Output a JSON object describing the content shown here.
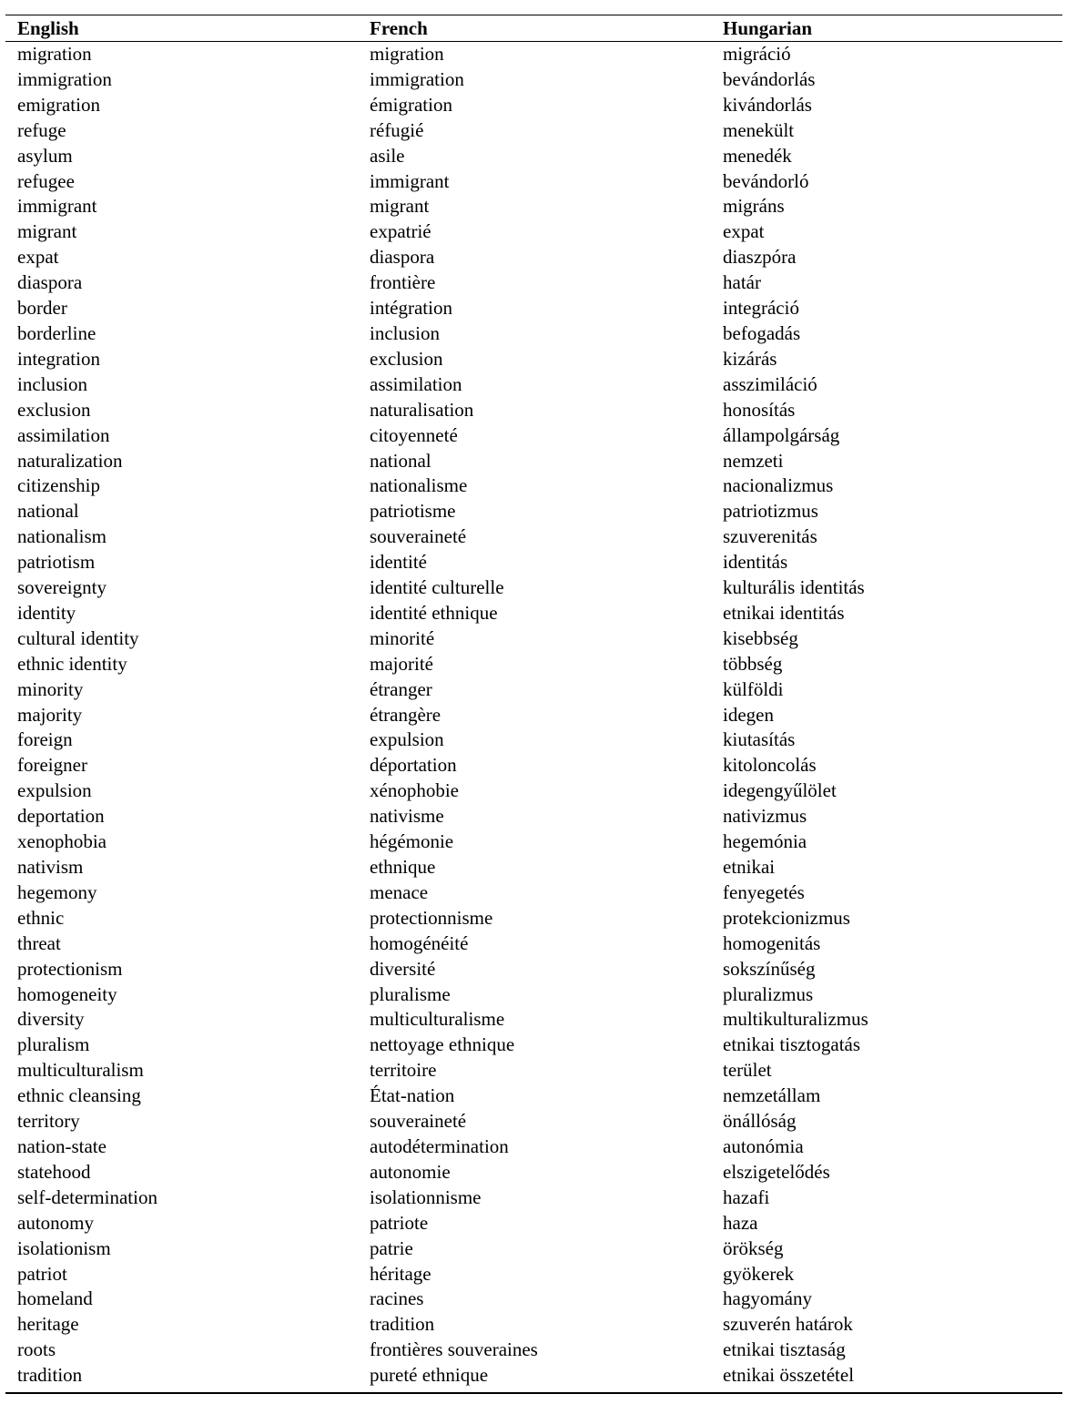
{
  "table": {
    "headers": [
      "English",
      "French",
      "Hungarian"
    ],
    "rows": [
      [
        "migration",
        "migration",
        "migráció"
      ],
      [
        "immigration",
        "immigration",
        "bevándorlás"
      ],
      [
        "emigration",
        "émigration",
        "kivándorlás"
      ],
      [
        "refuge",
        "réfugié",
        "menekült"
      ],
      [
        "asylum",
        "asile",
        "menedék"
      ],
      [
        "refugee",
        "immigrant",
        "bevándorló"
      ],
      [
        "immigrant",
        "migrant",
        "migráns"
      ],
      [
        "migrant",
        "expatrié",
        "expat"
      ],
      [
        "expat",
        "diaspora",
        "diaszpóra"
      ],
      [
        "diaspora",
        "frontière",
        "határ"
      ],
      [
        "border",
        "intégration",
        "integráció"
      ],
      [
        "borderline",
        "inclusion",
        "befogadás"
      ],
      [
        "integration",
        "exclusion",
        "kizárás"
      ],
      [
        "inclusion",
        "assimilation",
        "asszimiláció"
      ],
      [
        "exclusion",
        "naturalisation",
        "honosítás"
      ],
      [
        "assimilation",
        "citoyenneté",
        "állampolgárság"
      ],
      [
        "naturalization",
        "national",
        "nemzeti"
      ],
      [
        "citizenship",
        "nationalisme",
        "nacionalizmus"
      ],
      [
        "national",
        "patriotisme",
        "patriotizmus"
      ],
      [
        "nationalism",
        "souveraineté",
        "szuverenitás"
      ],
      [
        "patriotism",
        "identité",
        "identitás"
      ],
      [
        "sovereignty",
        "identité culturelle",
        "kulturális identitás"
      ],
      [
        "identity",
        "identité ethnique",
        "etnikai identitás"
      ],
      [
        "cultural identity",
        "minorité",
        "kisebbség"
      ],
      [
        "ethnic identity",
        "majorité",
        "többség"
      ],
      [
        "minority",
        "étranger",
        "külföldi"
      ],
      [
        "majority",
        "étrangère",
        "idegen"
      ],
      [
        "foreign",
        "expulsion",
        "kiutasítás"
      ],
      [
        "foreigner",
        "déportation",
        "kitoloncolás"
      ],
      [
        "expulsion",
        "xénophobie",
        "idegengyűlölet"
      ],
      [
        "deportation",
        "nativisme",
        "nativizmus"
      ],
      [
        "xenophobia",
        "hégémonie",
        "hegemónia"
      ],
      [
        "nativism",
        "ethnique",
        "etnikai"
      ],
      [
        "hegemony",
        "menace",
        "fenyegetés"
      ],
      [
        "ethnic",
        "protectionnisme",
        "protekcionizmus"
      ],
      [
        "threat",
        "homogénéité",
        "homogenitás"
      ],
      [
        "protectionism",
        "diversité",
        "sokszínűség"
      ],
      [
        "homogeneity",
        "pluralisme",
        "pluralizmus"
      ],
      [
        "diversity",
        "multiculturalisme",
        "multikulturalizmus"
      ],
      [
        "pluralism",
        "nettoyage ethnique",
        "etnikai tisztogatás"
      ],
      [
        "multiculturalism",
        "territoire",
        "terület"
      ],
      [
        "ethnic cleansing",
        "État-nation",
        "nemzetállam"
      ],
      [
        "territory",
        "souveraineté",
        "önállóság"
      ],
      [
        "nation-state",
        "autodétermination",
        "autonómia"
      ],
      [
        "statehood",
        "autonomie",
        "elszigetelődés"
      ],
      [
        "self-determination",
        "isolationnisme",
        "hazafi"
      ],
      [
        "autonomy",
        "patriote",
        "haza"
      ],
      [
        "isolationism",
        "patrie",
        "örökség"
      ],
      [
        "patriot",
        "héritage",
        "gyökerek"
      ],
      [
        "homeland",
        "racines",
        "hagyomány"
      ],
      [
        "heritage",
        "tradition",
        "szuverén határok"
      ],
      [
        "roots",
        "frontières souveraines",
        "etnikai tisztaság"
      ],
      [
        "tradition",
        "pureté ethnique",
        "etnikai összetétel"
      ]
    ]
  }
}
